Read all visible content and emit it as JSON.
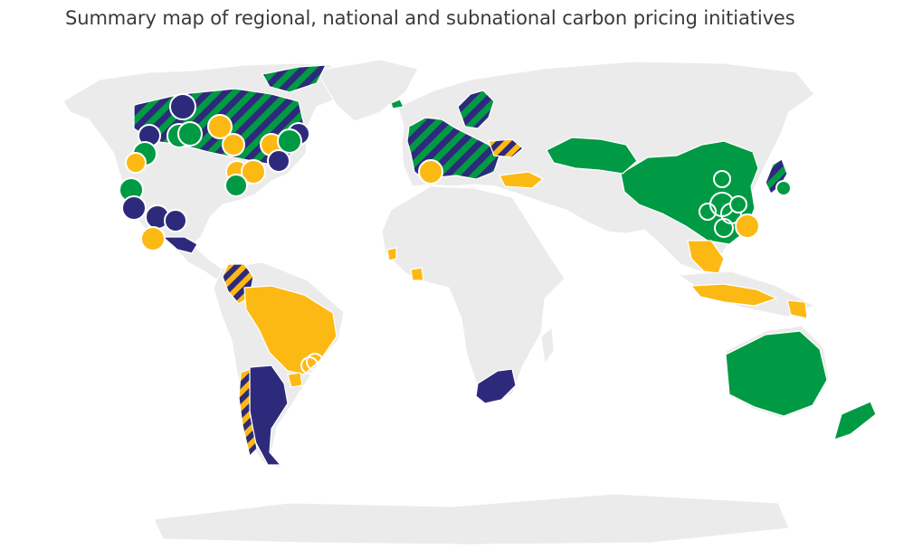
{
  "title": "Summary map of regional, national and subnational carbon pricing initiatives",
  "colors": {
    "land": "#ebebeb",
    "green": "#009a44",
    "yellow": "#fdb913",
    "purple": "#2e2a7b"
  }
}
